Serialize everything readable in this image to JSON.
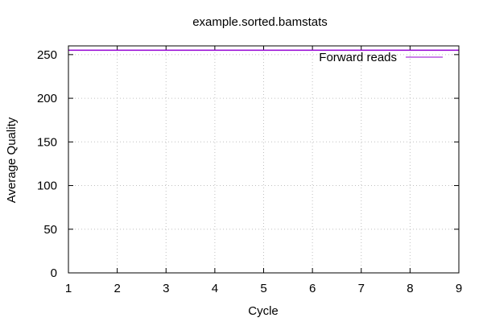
{
  "chart_data": {
    "type": "line",
    "title": "example.sorted.bamstats",
    "xlabel": "Cycle",
    "ylabel": "Average Quality",
    "xlim": [
      1,
      9
    ],
    "ylim": [
      0,
      260
    ],
    "x_ticks": [
      1,
      2,
      3,
      4,
      5,
      6,
      7,
      8,
      9
    ],
    "y_ticks": [
      0,
      50,
      100,
      150,
      200,
      250
    ],
    "grid": true,
    "legend_position": "top-right",
    "series": [
      {
        "name": "Forward reads",
        "color": "#9400d3",
        "x": [
          1,
          2,
          3,
          4,
          5,
          6,
          7,
          8,
          9
        ],
        "y": [
          255,
          255,
          255,
          255,
          255,
          255,
          255,
          255,
          255
        ]
      }
    ]
  }
}
